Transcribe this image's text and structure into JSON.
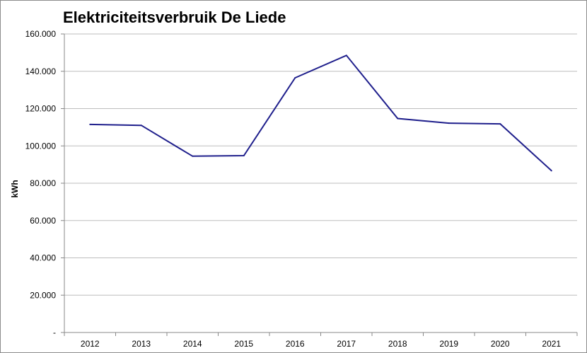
{
  "chart_data": {
    "type": "line",
    "title": "Elektriciteitsverbruik De Liede",
    "xlabel": "",
    "ylabel": "kWh",
    "categories": [
      "2012",
      "2013",
      "2014",
      "2015",
      "2016",
      "2017",
      "2018",
      "2019",
      "2020",
      "2021"
    ],
    "series": [
      {
        "values": [
          111500,
          111000,
          94500,
          94800,
          136500,
          148500,
          114700,
          112200,
          111800,
          86700
        ],
        "color": "#1f1f8c"
      }
    ],
    "ylim": [
      0,
      160000
    ],
    "yticks": [
      0,
      20000,
      40000,
      60000,
      80000,
      100000,
      120000,
      140000,
      160000
    ],
    "ytick_labels": [
      "-",
      "20.000",
      "40.000",
      "60.000",
      "80.000",
      "100.000",
      "120.000",
      "140.000",
      "160.000"
    ],
    "grid": true,
    "legend": "none"
  }
}
